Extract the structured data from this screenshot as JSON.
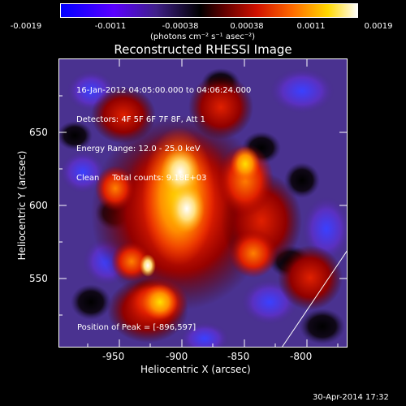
{
  "colorbar": {
    "ticks": [
      "-0.0019",
      "-0.0011",
      "-0.00038",
      "0.00038",
      "0.0011",
      "0.0019"
    ],
    "units": "(photons cm⁻² s⁻¹ asec⁻²)"
  },
  "title": "Reconstructed RHESSI Image",
  "info": {
    "line1": "16-Jan-2012 04:05:00.000 to 04:06:24.000",
    "line2": "Detectors: 4F 5F 6F 7F 8F, Att 1",
    "line3": "Energy Range: 12.0 - 25.0 keV",
    "line4": "Clean     Total counts: 9.18E+03"
  },
  "peak_label": "Position of Peak = [-896,597]",
  "axes": {
    "xlabel": "Heliocentric X (arcsec)",
    "ylabel": "Heliocentric Y (arcsec)",
    "xticks": [
      "-950",
      "-900",
      "-850",
      "-800"
    ],
    "yticks": [
      "650",
      "600",
      "550"
    ]
  },
  "timestamp": "30-Apr-2014 17:32",
  "colors": {
    "background": "#000000",
    "limb_line": "#ffffff",
    "colormap": [
      "#0000ff",
      "#6a00ff",
      "#3a1a90",
      "#000000",
      "#b00000",
      "#ff5000",
      "#ffd000",
      "#ffffff"
    ]
  }
}
